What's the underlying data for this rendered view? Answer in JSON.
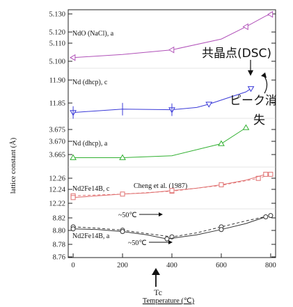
{
  "chart_data": {
    "type": "line",
    "ylabel": "lattice constant (Å)",
    "xlabel": "Temperature (℃)",
    "x_ticks": [
      "0",
      "200",
      "400",
      "600",
      "800"
    ],
    "x_arrow_label": "Tc",
    "xlim": [
      -20,
      820
    ],
    "panels": [
      {
        "id": "ndo",
        "label": "NdO (NaCl), a",
        "ylim": [
          5.095,
          5.132
        ],
        "y_ticks": [
          "5.130",
          "5.120",
          "5.110",
          "5.100"
        ],
        "color": "#b050b8",
        "marker": "triangle-left",
        "series": [
          {
            "x": [
              0,
              200,
              400,
              600,
              700,
              780,
              800
            ],
            "y": [
              5.101,
              5.103,
              5.106,
              5.113,
              5.121,
              5.128,
              5.129
            ]
          }
        ]
      },
      {
        "id": "ndc",
        "label": "Nd (dhcp), c",
        "ylim": [
          11.84,
          11.925
        ],
        "y_ticks": [
          "11.90",
          "11.85"
        ],
        "color": "#3a3ad8",
        "marker": "triangle-down",
        "series": [
          {
            "x": [
              0,
              200,
              400,
              500,
              550,
              700,
              720
            ],
            "y": [
              11.848,
              11.854,
              11.853,
              11.857,
              11.863,
              11.885,
              11.891
            ]
          }
        ]
      },
      {
        "id": "nda",
        "label": "Nd (dhcp), a",
        "ylim": [
          3.658,
          3.681
        ],
        "y_ticks": [
          "3.675",
          "3.670",
          "3.665"
        ],
        "color": "#30b030",
        "marker": "triangle-up",
        "series": [
          {
            "x": [
              0,
              100,
              200,
              400,
              600,
              700
            ],
            "y": [
              3.662,
              3.662,
              3.662,
              3.663,
              3.669,
              3.677
            ]
          }
        ]
      },
      {
        "id": "ndfebc",
        "label": "Nd2Fe14B, c",
        "ylim": [
          12.205,
          12.272
        ],
        "y_ticks": [
          "12.26",
          "12.24",
          "12.22"
        ],
        "color": "#e07070",
        "marker": "square",
        "ref_label": "Cheng et al. (1987)",
        "annotation": "~50℃",
        "series": [
          {
            "name": "Cheng et al. (1987)",
            "dashed": true,
            "x": [
              0,
              200,
              400,
              600,
              750,
              800
            ],
            "y": [
              12.225,
              12.228,
              12.233,
              12.243,
              12.255,
              12.262
            ]
          },
          {
            "dashed": false,
            "x": [
              0,
              100,
              200,
              300,
              400,
              500,
              600,
              700,
              780
            ],
            "y": [
              12.222,
              12.225,
              12.228,
              12.23,
              12.234,
              12.238,
              12.244,
              12.252,
              12.262
            ]
          }
        ]
      },
      {
        "id": "ndfeba",
        "label": "Nd2Fe14B, a",
        "ylim": [
          8.755,
          8.828
        ],
        "y_ticks": [
          "8.82",
          "8.80",
          "8.78",
          "8.76"
        ],
        "color": "#333333",
        "marker": "circle",
        "annotation": "~50℃",
        "series": [
          {
            "name": "Cheng et al. (1987)",
            "dashed": true,
            "x": [
              0,
              100,
              200,
              300,
              400,
              500,
              600,
              700,
              800
            ],
            "y": [
              8.801,
              8.799,
              8.796,
              8.791,
              8.786,
              8.792,
              8.801,
              8.81,
              8.818
            ]
          },
          {
            "dashed": false,
            "x": [
              0,
              100,
              200,
              300,
              380,
              500,
              600,
              700,
              780
            ],
            "y": [
              8.798,
              8.797,
              8.794,
              8.789,
              8.783,
              8.789,
              8.797,
              8.806,
              8.816
            ]
          }
        ]
      }
    ]
  },
  "annotations": {
    "eutectic_dsc": "共晶点(DSC)",
    "peak_vanish_1": "ピーク消",
    "peak_vanish_2": "失"
  }
}
